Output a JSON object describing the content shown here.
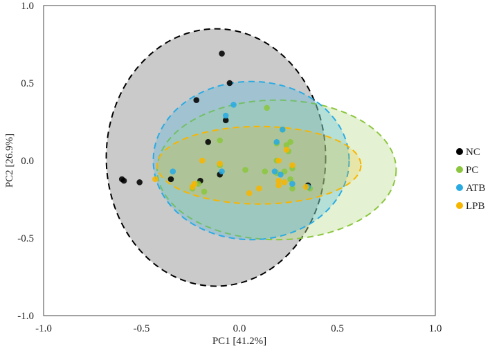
{
  "chart_data": {
    "type": "scatter",
    "title": "",
    "xlabel": "PC1 [41.2%]",
    "ylabel": "PC2 [26.9%]",
    "xlim": [
      -1.0,
      1.0
    ],
    "ylim": [
      -1.0,
      1.0
    ],
    "xticks": [
      "-1.0",
      "-0.5",
      "0.0",
      "0.5",
      "1.0"
    ],
    "yticks": [
      "-1.0",
      "-0.5",
      "0.0",
      "0.5",
      "1.0"
    ],
    "grid": false,
    "legend_position": "right",
    "series": [
      {
        "name": "NC",
        "color": "#000000",
        "points": [
          [
            -0.09,
            0.69
          ],
          [
            -0.05,
            0.5
          ],
          [
            -0.22,
            0.39
          ],
          [
            -0.07,
            0.26
          ],
          [
            -0.16,
            0.12
          ],
          [
            -0.59,
            -0.13
          ],
          [
            -0.6,
            -0.12
          ],
          [
            -0.51,
            -0.14
          ],
          [
            -0.35,
            -0.12
          ],
          [
            -0.2,
            -0.13
          ],
          [
            -0.1,
            -0.09
          ],
          [
            0.35,
            -0.16
          ]
        ]
      },
      {
        "name": "PC",
        "color": "#8CC63F",
        "points": [
          [
            0.14,
            0.34
          ],
          [
            0.22,
            0.2
          ],
          [
            0.26,
            0.12
          ],
          [
            0.25,
            0.06
          ],
          [
            -0.1,
            0.13
          ],
          [
            0.19,
            0.11
          ],
          [
            0.24,
            0.1
          ],
          [
            0.19,
            0.0
          ],
          [
            0.27,
            -0.05
          ],
          [
            0.03,
            -0.06
          ],
          [
            -0.1,
            -0.03
          ],
          [
            0.19,
            -0.08
          ],
          [
            0.23,
            -0.07
          ],
          [
            0.26,
            -0.12
          ],
          [
            0.27,
            -0.18
          ],
          [
            -0.18,
            -0.2
          ],
          [
            -0.24,
            -0.18
          ],
          [
            0.36,
            -0.18
          ],
          [
            -0.21,
            -0.15
          ],
          [
            0.13,
            -0.07
          ]
        ]
      },
      {
        "name": "ATB",
        "color": "#29ABE2",
        "points": [
          [
            -0.03,
            0.36
          ],
          [
            -0.07,
            0.29
          ],
          [
            0.22,
            0.2
          ],
          [
            0.18,
            -0.07
          ],
          [
            0.21,
            -0.09
          ],
          [
            0.35,
            -0.17
          ],
          [
            -0.34,
            -0.07
          ],
          [
            -0.09,
            -0.07
          ],
          [
            0.27,
            -0.15
          ],
          [
            0.19,
            0.12
          ]
        ]
      },
      {
        "name": "LPB",
        "color": "#F7B500",
        "points": [
          [
            0.24,
            0.07
          ],
          [
            0.2,
            0.0
          ],
          [
            0.27,
            -0.03
          ],
          [
            -0.24,
            -0.17
          ],
          [
            -0.43,
            -0.12
          ],
          [
            -0.19,
            0.0
          ],
          [
            -0.1,
            -0.02
          ],
          [
            0.1,
            -0.18
          ],
          [
            0.05,
            -0.21
          ],
          [
            0.2,
            -0.16
          ],
          [
            0.23,
            -0.14
          ],
          [
            0.2,
            -0.13
          ],
          [
            0.34,
            -0.17
          ],
          [
            -0.23,
            -0.15
          ]
        ]
      }
    ],
    "confidence_ellipses": [
      {
        "series": "NC",
        "center": [
          -0.12,
          0.02
        ],
        "rx": 0.56,
        "ry": 0.83,
        "fill": "#9E9E9E",
        "fill_opacity": 0.55,
        "stroke": "#000000"
      },
      {
        "series": "PC",
        "center": [
          0.19,
          -0.06
        ],
        "rx": 0.61,
        "ry": 0.45,
        "fill": "#BCDF90",
        "fill_opacity": 0.4,
        "stroke": "#8CC63F"
      },
      {
        "series": "ATB",
        "center": [
          0.06,
          0.0
        ],
        "rx": 0.5,
        "ry": 0.51,
        "fill": "#29ABE2",
        "fill_opacity": 0.25,
        "stroke": "#29ABE2"
      },
      {
        "series": "LPB",
        "center": [
          0.1,
          -0.03
        ],
        "rx": 0.52,
        "ry": 0.25,
        "fill": "#F7B500",
        "fill_opacity": 0.2,
        "stroke": "#F7B500"
      }
    ]
  }
}
